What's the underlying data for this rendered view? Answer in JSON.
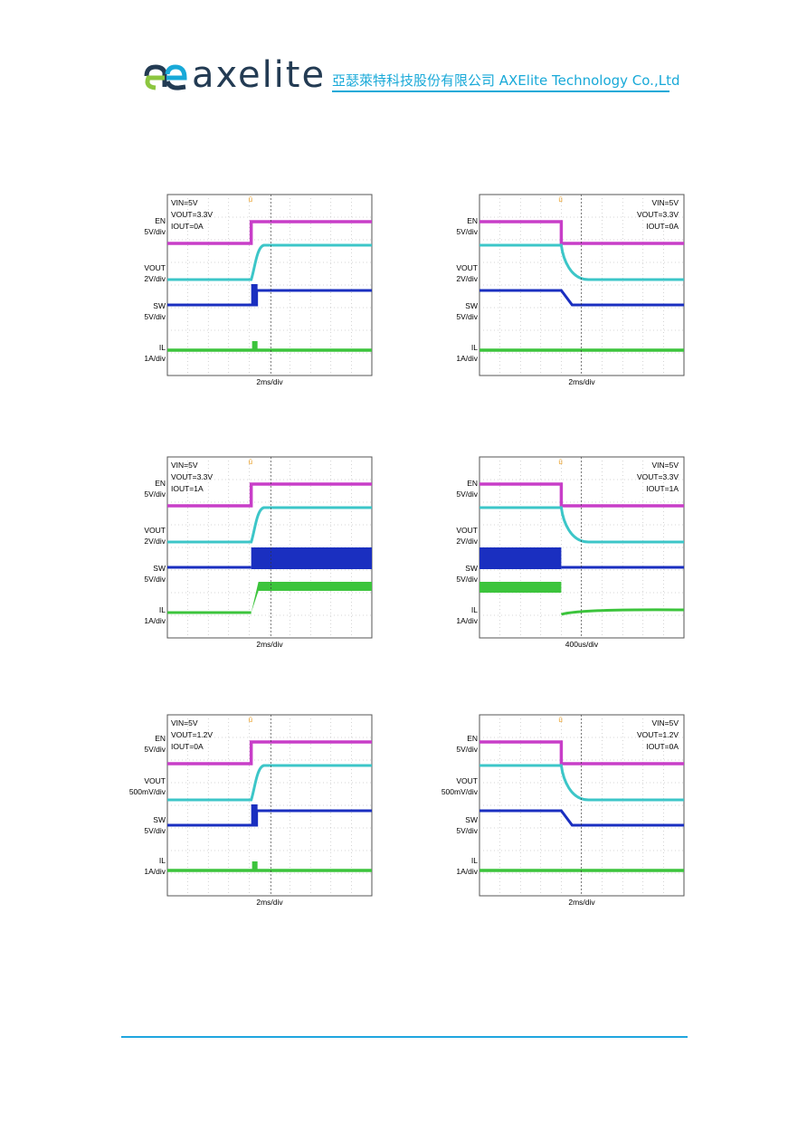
{
  "header": {
    "brand": "axelite",
    "company": "亞瑟萊特科技股份有限公司  AXElite Technology Co.,Ltd",
    "colors": {
      "brand_text": "#233b53",
      "accent": "#18a9d8",
      "logo_green": "#8cc63f"
    },
    "logo_icon": "ae-logo-icon"
  },
  "scopes": [
    {
      "id": "s1",
      "conditions": [
        "VIN=5V",
        "VOUT=3.3V",
        "IOUT=0A"
      ],
      "conditions_side": "left",
      "channel_labels": [
        "EN",
        "5V/div",
        "VOUT",
        "2V/div",
        "SW",
        "5V/div",
        "IL",
        "1A/div"
      ],
      "timebase": "2ms/div",
      "trigger": "up"
    },
    {
      "id": "s2",
      "conditions": [
        "VIN=5V",
        "VOUT=3.3V",
        "IOUT=0A"
      ],
      "conditions_side": "right",
      "channel_labels": [
        "EN",
        "5V/div",
        "VOUT",
        "2V/div",
        "SW",
        "5V/div",
        "IL",
        "1A/div"
      ],
      "timebase": "2ms/div",
      "trigger": "down"
    },
    {
      "id": "s3",
      "conditions": [
        "VIN=5V",
        "VOUT=3.3V",
        "IOUT=1A"
      ],
      "conditions_side": "left",
      "channel_labels": [
        "EN",
        "5V/div",
        "VOUT",
        "2V/div",
        "SW",
        "5V/div",
        "IL",
        "1A/div"
      ],
      "timebase": "2ms/div",
      "trigger": "up"
    },
    {
      "id": "s4",
      "conditions": [
        "VIN=5V",
        "VOUT=3.3V",
        "IOUT=1A"
      ],
      "conditions_side": "right",
      "channel_labels": [
        "EN",
        "5V/div",
        "VOUT",
        "2V/div",
        "SW",
        "5V/div",
        "IL",
        "1A/div"
      ],
      "timebase": "400us/div",
      "trigger": "down"
    },
    {
      "id": "s5",
      "conditions": [
        "VIN=5V",
        "VOUT=1.2V",
        "IOUT=0A"
      ],
      "conditions_side": "left",
      "channel_labels": [
        "EN",
        "5V/div",
        "VOUT",
        "500mV/div",
        "SW",
        "5V/div",
        "IL",
        "1A/div"
      ],
      "timebase": "2ms/div",
      "trigger": "up"
    },
    {
      "id": "s6",
      "conditions": [
        "VIN=5V",
        "VOUT=1.2V",
        "IOUT=0A"
      ],
      "conditions_side": "right",
      "channel_labels": [
        "EN",
        "5V/div",
        "VOUT",
        "500mV/div",
        "SW",
        "5V/div",
        "IL",
        "1A/div"
      ],
      "timebase": "2ms/div",
      "trigger": "down"
    }
  ],
  "trace_colors": {
    "EN": "#c83ec8",
    "VOUT": "#3cc6c8",
    "SW": "#1a2fc0",
    "IL": "#3cc43c"
  }
}
